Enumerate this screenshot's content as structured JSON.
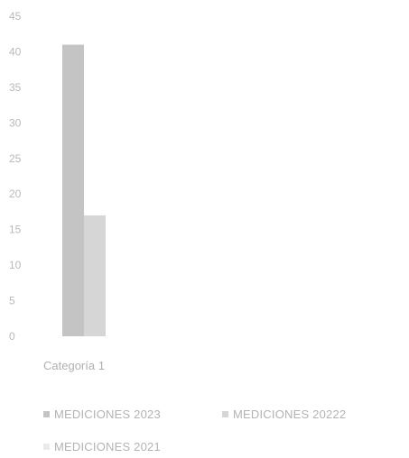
{
  "chart_data": {
    "type": "bar",
    "categories": [
      "Categoría 1"
    ],
    "series": [
      {
        "name": "MEDICIONES 2023",
        "values": [
          41
        ],
        "color": "#c4c4c4"
      },
      {
        "name": "MEDICIONES 20222",
        "values": [
          17
        ],
        "color": "#d6d6d6"
      },
      {
        "name": "MEDICIONES 2021",
        "values": [
          0
        ],
        "color": "#ebebeb"
      }
    ],
    "y_ticks": [
      "0",
      "5",
      "10",
      "15",
      "20",
      "25",
      "30",
      "35",
      "40",
      "45"
    ],
    "ylim": [
      0,
      45
    ],
    "grid": false,
    "legend_position": "bottom"
  },
  "legend": {
    "items": [
      {
        "label": "MEDICIONES 2023",
        "color": "#c4c4c4"
      },
      {
        "label": "MEDICIONES 20222",
        "color": "#d6d6d6"
      },
      {
        "label": "MEDICIONES 2021",
        "color": "#ebebeb"
      }
    ]
  }
}
